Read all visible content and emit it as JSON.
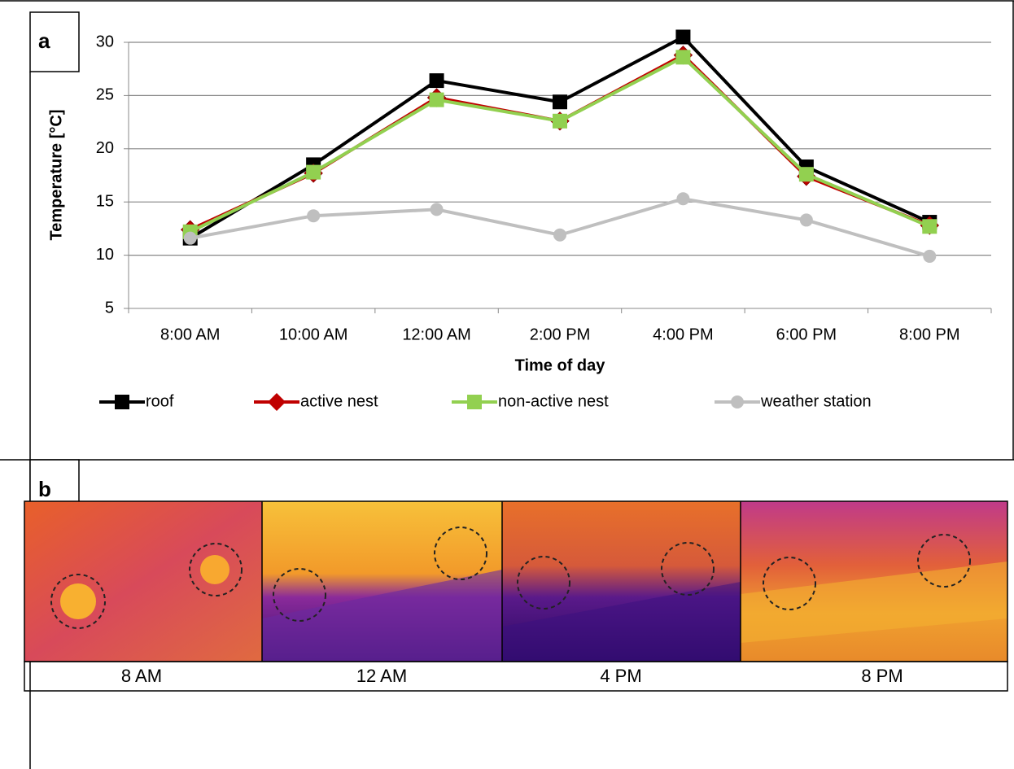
{
  "chart_data": {
    "type": "line",
    "y_label": "Temperature [°C]",
    "x_label": "Time of day",
    "categories": [
      "8:00 AM",
      "10:00 AM",
      "12:00 AM",
      "2:00 PM",
      "4:00 PM",
      "6:00 PM",
      "8:00 PM"
    ],
    "series": [
      {
        "name": "roof",
        "color": "#000000",
        "marker": "square",
        "values": [
          11.6,
          18.5,
          26.4,
          24.4,
          30.5,
          18.3,
          13.1
        ]
      },
      {
        "name": "active nest",
        "color": "#c00000",
        "marker": "diamond",
        "values": [
          12.4,
          17.7,
          24.8,
          22.6,
          28.8,
          17.4,
          12.8
        ]
      },
      {
        "name": "non-active nest",
        "color": "#92d050",
        "marker": "square",
        "values": [
          12.2,
          17.8,
          24.6,
          22.6,
          28.6,
          17.6,
          12.7
        ]
      },
      {
        "name": "weather station",
        "color": "#bfbfbf",
        "marker": "circle",
        "values": [
          11.6,
          13.7,
          14.3,
          11.9,
          15.3,
          13.3,
          9.9
        ]
      }
    ],
    "ylim": [
      5,
      30
    ],
    "yticks": [
      5,
      10,
      15,
      20,
      25,
      30
    ],
    "grid": true,
    "legend": "bottom"
  },
  "panel_labels": [
    "a",
    "b"
  ],
  "panel_b": {
    "labels": [
      "8 AM",
      "12 AM",
      "4 PM",
      "8 PM"
    ]
  }
}
